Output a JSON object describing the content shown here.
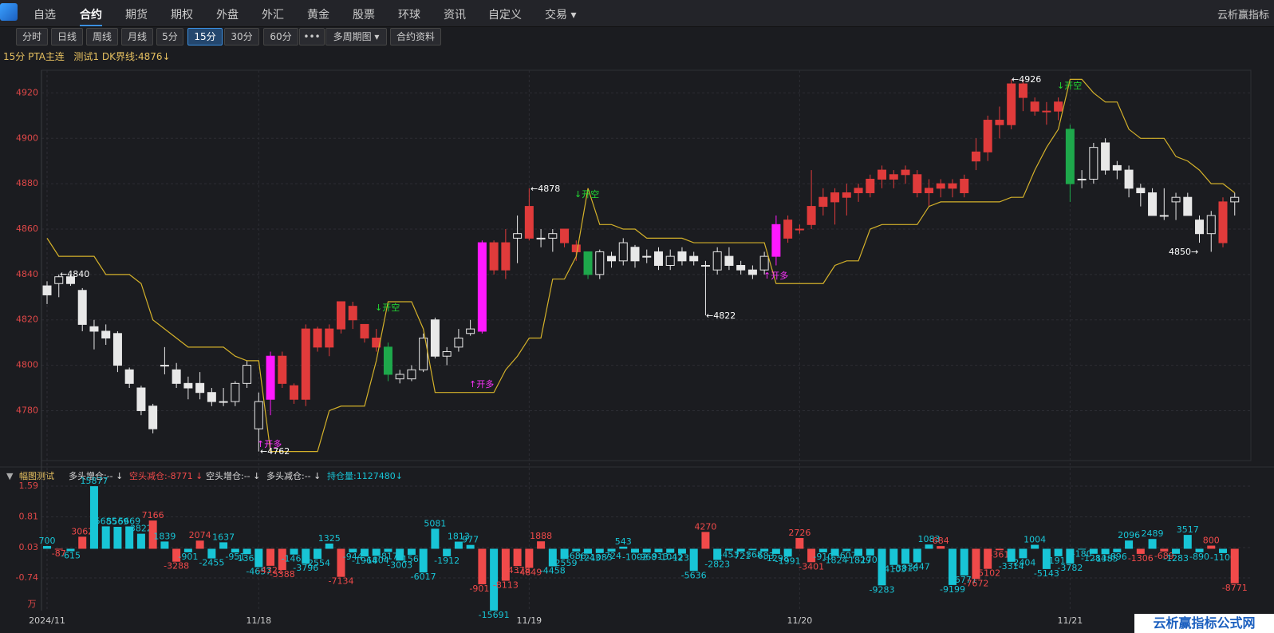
{
  "nav": {
    "items": [
      "自选",
      "合约",
      "期货",
      "期权",
      "外盘",
      "外汇",
      "黄金",
      "股票",
      "环球",
      "资讯",
      "自定义",
      "交易 ▾"
    ],
    "user": "云析赢指标"
  },
  "toolbar": {
    "buttons": [
      "分时",
      "日线",
      "周线",
      "月线",
      "5分",
      "15分",
      "30分",
      "60分",
      "•••",
      "多周期图 ▾",
      "合约资料"
    ]
  },
  "header": {
    "symbol": "15分 PTA主连",
    "indicator": "测试1 DK界线:4876↓"
  },
  "chart_data": [
    {
      "type": "candlestick",
      "categories": [
        "2024/11",
        null,
        null,
        null,
        null,
        null,
        null,
        null,
        null,
        null,
        null,
        null,
        null,
        null,
        null,
        null,
        null,
        null,
        "11/18",
        null,
        null,
        null,
        null,
        null,
        null,
        null,
        null,
        null,
        null,
        null,
        null,
        null,
        null,
        null,
        null,
        null,
        null,
        null,
        null,
        null,
        null,
        "11/19",
        null,
        null,
        null,
        null,
        null,
        null,
        null,
        null,
        null,
        null,
        null,
        null,
        null,
        null,
        null,
        null,
        null,
        null,
        null,
        null,
        null,
        null,
        "11/20",
        null,
        null,
        null,
        null,
        null,
        null,
        null,
        null,
        null,
        null,
        null,
        null,
        null,
        null,
        null,
        null,
        null,
        null,
        null,
        null,
        null,
        null,
        "11/21",
        null,
        null,
        null,
        null,
        null,
        null,
        null,
        null,
        null,
        null,
        null,
        null,
        null,
        null
      ],
      "open": [
        4835,
        4836,
        4839,
        4833,
        4817,
        4815,
        4814,
        4798,
        4790,
        4782,
        4800,
        4798,
        4792,
        4792,
        4788,
        4784,
        4784,
        4792,
        4772,
        4785,
        4792,
        4785,
        4785,
        4808,
        4808,
        4816,
        4820,
        4818,
        4812,
        4808,
        4794,
        4794,
        4798,
        4820,
        4804,
        4808,
        4814,
        4815,
        4842,
        4842,
        4856,
        4856,
        4856,
        4856,
        4860,
        4853,
        4850,
        4840,
        4848,
        4846,
        4852,
        4848,
        4850,
        4844,
        4850,
        4848,
        4844,
        4842,
        4848,
        4844,
        4842,
        4842,
        4848,
        4864,
        4860,
        4862,
        4870,
        4872,
        4876,
        4876,
        4876,
        4882,
        4882,
        4886,
        4884,
        4878,
        4878,
        4880,
        4876,
        4890,
        4894,
        4906,
        4906,
        4918,
        4916,
        4912,
        4912,
        4904,
        4882,
        4882,
        4898,
        4888,
        4886,
        4878,
        4876,
        4866,
        4872,
        4874,
        4864,
        4858,
        4854,
        4872
      ],
      "high": [
        4837,
        4840,
        4840,
        4834,
        4820,
        4818,
        4815,
        4799,
        4791,
        4783,
        4808,
        4801,
        4795,
        4797,
        4790,
        4790,
        4793,
        4802,
        4788,
        4806,
        4806,
        4792,
        4818,
        4817,
        4818,
        4828,
        4828,
        4818,
        4816,
        4810,
        4798,
        4800,
        4814,
        4821,
        4808,
        4816,
        4820,
        4855,
        4855,
        4860,
        4866,
        4878,
        4860,
        4860,
        4860,
        4855,
        4850,
        4851,
        4850,
        4856,
        4853,
        4851,
        4852,
        4851,
        4852,
        4850,
        4846,
        4852,
        4852,
        4846,
        4844,
        4850,
        4866,
        4866,
        4862,
        4886,
        4878,
        4878,
        4880,
        4880,
        4884,
        4888,
        4886,
        4888,
        4886,
        4882,
        4882,
        4882,
        4884,
        4900,
        4910,
        4914,
        4926,
        4926,
        4918,
        4916,
        4918,
        4906,
        4886,
        4898,
        4900,
        4890,
        4888,
        4880,
        4878,
        4878,
        4876,
        4876,
        4866,
        4868,
        4874,
        4876
      ],
      "low": [
        4827,
        4830,
        4835,
        4815,
        4807,
        4809,
        4797,
        4790,
        4778,
        4770,
        4796,
        4790,
        4785,
        4785,
        4782,
        4782,
        4782,
        4790,
        4762,
        4778,
        4790,
        4783,
        4782,
        4806,
        4804,
        4814,
        4816,
        4810,
        4806,
        4793,
        4792,
        4793,
        4797,
        4803,
        4800,
        4806,
        4813,
        4814,
        4840,
        4838,
        4845,
        4855,
        4852,
        4850,
        4852,
        4846,
        4838,
        4838,
        4843,
        4844,
        4843,
        4845,
        4842,
        4842,
        4844,
        4844,
        4822,
        4840,
        4842,
        4840,
        4838,
        4840,
        4844,
        4854,
        4858,
        4860,
        4866,
        4862,
        4866,
        4872,
        4874,
        4878,
        4878,
        4880,
        4874,
        4870,
        4874,
        4874,
        4874,
        4886,
        4890,
        4900,
        4904,
        4912,
        4910,
        4906,
        4908,
        4872,
        4878,
        4880,
        4884,
        4882,
        4874,
        4870,
        4866,
        4864,
        4864,
        4866,
        4854,
        4850,
        4852,
        4866
      ],
      "close": [
        4831,
        4839,
        4836,
        4818,
        4815,
        4812,
        4800,
        4792,
        4780,
        4772,
        4800,
        4792,
        4790,
        4788,
        4784,
        4784,
        4792,
        4800,
        4784,
        4804,
        4804,
        4791,
        4816,
        4816,
        4816,
        4828,
        4826,
        4812,
        4808,
        4796,
        4796,
        4798,
        4812,
        4804,
        4806,
        4812,
        4816,
        4854,
        4854,
        4854,
        4858,
        4870,
        4856,
        4858,
        4854,
        4850,
        4840,
        4850,
        4846,
        4854,
        4846,
        4848,
        4844,
        4848,
        4846,
        4846,
        4844,
        4850,
        4844,
        4842,
        4840,
        4848,
        4862,
        4856,
        4860,
        4870,
        4874,
        4876,
        4874,
        4878,
        4882,
        4886,
        4884,
        4884,
        4876,
        4876,
        4880,
        4878,
        4882,
        4894,
        4908,
        4908,
        4924,
        4924,
        4912,
        4912,
        4916,
        4880,
        4882,
        4896,
        4886,
        4886,
        4878,
        4876,
        4866,
        4866,
        4874,
        4866,
        4858,
        4866,
        4872,
        4874
      ],
      "colors": [
        "#e8e8e8",
        "#e8e8e8",
        "#e8e8e8",
        "#e8e8e8",
        "#e8e8e8",
        "#e8e8e8",
        "#e8e8e8",
        "#e8e8e8",
        "#e8e8e8",
        "#e8e8e8",
        "#e8e8e8",
        "#e8e8e8",
        "#e8e8e8",
        "#e8e8e8",
        "#e8e8e8",
        "#e8e8e8",
        "#e8e8e8",
        "#e8e8e8",
        "#e8e8e8",
        "#ff19ff",
        "#e03b3b",
        "#e03b3b",
        "#e03b3b",
        "#e03b3b",
        "#e03b3b",
        "#e03b3b",
        "#e03b3b",
        "#e03b3b",
        "#e03b3b",
        "#1ea84b",
        "#e8e8e8",
        "#e8e8e8",
        "#e8e8e8",
        "#e8e8e8",
        "#e8e8e8",
        "#e8e8e8",
        "#e8e8e8",
        "#ff19ff",
        "#e03b3b",
        "#e03b3b",
        "#e8e8e8",
        "#e03b3b",
        "#e8e8e8",
        "#e8e8e8",
        "#e03b3b",
        "#e03b3b",
        "#1ea84b",
        "#e8e8e8",
        "#e8e8e8",
        "#e8e8e8",
        "#e8e8e8",
        "#e8e8e8",
        "#e8e8e8",
        "#e8e8e8",
        "#e8e8e8",
        "#e8e8e8",
        "#e8e8e8",
        "#e8e8e8",
        "#e8e8e8",
        "#e8e8e8",
        "#e8e8e8",
        "#e8e8e8",
        "#ff19ff",
        "#e03b3b",
        "#e03b3b",
        "#e03b3b",
        "#e03b3b",
        "#e03b3b",
        "#e03b3b",
        "#e03b3b",
        "#e03b3b",
        "#e03b3b",
        "#e03b3b",
        "#e03b3b",
        "#e03b3b",
        "#e03b3b",
        "#e03b3b",
        "#e03b3b",
        "#e03b3b",
        "#e03b3b",
        "#e03b3b",
        "#e03b3b",
        "#e03b3b",
        "#e03b3b",
        "#e03b3b",
        "#e03b3b",
        "#e03b3b",
        "#1ea84b",
        "#e8e8e8",
        "#e8e8e8",
        "#e8e8e8",
        "#e8e8e8",
        "#e8e8e8",
        "#e8e8e8",
        "#e8e8e8",
        "#e8e8e8",
        "#e8e8e8",
        "#e8e8e8",
        "#e8e8e8",
        "#e8e8e8",
        "#e03b3b",
        "#e8e8e8"
      ],
      "line_values": [
        4856,
        4848,
        4848,
        4848,
        4848,
        4840,
        4840,
        4840,
        4836,
        4820,
        4816,
        4812,
        4808,
        4808,
        4808,
        4808,
        4804,
        4802,
        4802,
        4762,
        4762,
        4762,
        4762,
        4762,
        4780,
        4782,
        4782,
        4782,
        4802,
        4828,
        4828,
        4828,
        4816,
        4788,
        4788,
        4788,
        4788,
        4788,
        4788,
        4798,
        4804,
        4812,
        4812,
        4838,
        4838,
        4848,
        4878,
        4862,
        4862,
        4860,
        4860,
        4856,
        4856,
        4856,
        4856,
        4854,
        4854,
        4854,
        4854,
        4854,
        4854,
        4854,
        4836,
        4836,
        4836,
        4836,
        4836,
        4844,
        4846,
        4846,
        4860,
        4862,
        4862,
        4862,
        4862,
        4870,
        4872,
        4872,
        4872,
        4872,
        4872,
        4872,
        4874,
        4874,
        4886,
        4896,
        4904,
        4926,
        4926,
        4920,
        4916,
        4916,
        4904,
        4900,
        4900,
        4900,
        4892,
        4890,
        4886,
        4880,
        4880,
        4876
      ],
      "line_color": "#d4b12a",
      "annotations": [
        {
          "text": "←4840",
          "color": "#ffffff"
        },
        {
          "text": "←4762",
          "color": "#ffffff"
        },
        {
          "text": "←4878",
          "color": "#ffffff"
        },
        {
          "text": "←4822",
          "color": "#ffffff"
        },
        {
          "text": "←4926",
          "color": "#ffffff"
        },
        {
          "text": "4850→",
          "color": "#ffffff"
        },
        {
          "text": "↑开多",
          "color": "#ff33ff"
        },
        {
          "text": "↑开多",
          "color": "#ff33ff"
        },
        {
          "text": "↑开多",
          "color": "#ff33ff"
        },
        {
          "text": "↓开空",
          "color": "#22dd33"
        },
        {
          "text": "↓开空",
          "color": "#22dd33"
        },
        {
          "text": "↓开空",
          "color": "#22dd33"
        }
      ],
      "ylim": [
        4758,
        4930
      ],
      "yticks": [
        4780,
        4800,
        4820,
        4840,
        4860,
        4880,
        4900,
        4920
      ],
      "grid": true
    },
    {
      "type": "bar",
      "title": "幅图测试",
      "legend": [
        "多头增仓:-- ↓",
        "空头减仓:-8771 ↓",
        "空头增仓:-- ↓",
        "多头减仓:-- ↓",
        "持仓量:1127480↓"
      ],
      "unit": "万",
      "values": [
        0.07,
        -0.0087,
        -0.0615,
        0.3062,
        1.5877,
        0.5685,
        0.5569,
        0.5669,
        0.3822,
        0.7166,
        0.1839,
        -0.3288,
        -0.0901,
        0.2074,
        -0.2455,
        0.1637,
        -0.0951,
        -0.1364,
        -0.4657,
        -0.4322,
        -0.5388,
        -0.1462,
        -0.3796,
        -0.2554,
        0.1325,
        -0.7134,
        -0.0944,
        -0.1964,
        -0.1804,
        -0.0817,
        -0.3003,
        -0.1567,
        -0.6017,
        0.5081,
        -0.1912,
        0.1813,
        0.0977,
        -0.9011,
        -1.5691,
        -0.8113,
        -0.4378,
        -0.4849,
        0.1888,
        -0.4458,
        -0.2559,
        -0.0686,
        -0.1243,
        -0.1083,
        -0.0724,
        0.0543,
        -0.1002,
        -0.0968,
        -0.0913,
        -0.1042,
        -0.1233,
        -0.5636,
        0.427,
        -0.2823,
        -0.0453,
        -0.0721,
        -0.0368,
        -0.0683,
        -0.1298,
        -0.1991,
        0.2726,
        -0.3401,
        -0.091,
        -0.1824,
        -0.0607,
        -0.1829,
        -0.1709,
        -0.9283,
        -0.4103,
        -0.3816,
        -0.3447,
        0.1083,
        0.0684,
        -0.9199,
        -0.6771,
        -0.7672,
        -0.5102,
        -0.0361,
        -0.3314,
        -0.2404,
        0.1004,
        -0.5143,
        -0.1911,
        -0.3782,
        -0.018,
        -0.1284,
        -0.1385,
        -0.0896,
        0.2096,
        -0.1306,
        0.2489,
        -0.0689,
        -0.1283,
        0.3517,
        -0.089,
        0.08,
        -0.11,
        -0.8771
      ],
      "value_labels": [
        "700",
        "-87",
        "-615",
        "3062",
        "15877",
        "5685",
        "5569",
        "5669",
        "3822",
        "7166",
        "1839",
        "-3288",
        "-901",
        "2074",
        "-2455",
        "1637",
        "-951",
        "-1364",
        "-4657",
        "-4322",
        "-5388",
        "-1462",
        "-3796",
        "-2554",
        "1325",
        "-7134",
        "-944",
        "-1964",
        "-1804",
        "-817",
        "-3003",
        "-1567",
        "-6017",
        "5081",
        "-1912",
        "1813",
        "977",
        "-9011",
        "-15691",
        "-8113",
        "-4378",
        "-4849",
        "1888",
        "-4458",
        "-2559",
        "-686",
        "-1243",
        "-1083",
        "-724",
        "543",
        "-1002",
        "-968",
        "-913",
        "-1042",
        "-1233",
        "-5636",
        "4270",
        "-2823",
        "-453",
        "-721",
        "-368",
        "-683",
        "-1298",
        "-1991",
        "2726",
        "-3401",
        "-910",
        "-1824",
        "-607",
        "-1829",
        "-1709",
        "-9283",
        "-4103",
        "-3816",
        "-3447",
        "1083",
        "684",
        "-9199",
        "-6771",
        "-7672",
        "-5102",
        "-361",
        "-3314",
        "-2404",
        "1004",
        "-5143",
        "-1911",
        "-3782",
        "-180",
        "-1284",
        "-1385",
        "-896",
        "2096",
        "-1306",
        "2489",
        "-689",
        "-1283",
        "3517",
        "-890",
        "800",
        "-1100",
        "-8771"
      ],
      "colors": [
        "#18c5d6",
        "#f04a4a",
        "#18c5d6",
        "#f04a4a",
        "#18c5d6",
        "#18c5d6",
        "#18c5d6",
        "#18c5d6",
        "#18c5d6",
        "#f04a4a",
        "#18c5d6",
        "#f04a4a",
        "#18c5d6",
        "#f04a4a",
        "#18c5d6",
        "#18c5d6",
        "#18c5d6",
        "#18c5d6",
        "#18c5d6",
        "#f04a4a",
        "#f04a4a",
        "#18c5d6",
        "#18c5d6",
        "#18c5d6",
        "#18c5d6",
        "#f04a4a",
        "#18c5d6",
        "#18c5d6",
        "#18c5d6",
        "#18c5d6",
        "#18c5d6",
        "#18c5d6",
        "#18c5d6",
        "#18c5d6",
        "#18c5d6",
        "#18c5d6",
        "#18c5d6",
        "#f04a4a",
        "#18c5d6",
        "#f04a4a",
        "#f04a4a",
        "#f04a4a",
        "#f04a4a",
        "#18c5d6",
        "#18c5d6",
        "#18c5d6",
        "#18c5d6",
        "#18c5d6",
        "#18c5d6",
        "#18c5d6",
        "#18c5d6",
        "#18c5d6",
        "#18c5d6",
        "#18c5d6",
        "#18c5d6",
        "#18c5d6",
        "#f04a4a",
        "#18c5d6",
        "#18c5d6",
        "#18c5d6",
        "#18c5d6",
        "#18c5d6",
        "#18c5d6",
        "#18c5d6",
        "#f04a4a",
        "#f04a4a",
        "#18c5d6",
        "#18c5d6",
        "#18c5d6",
        "#18c5d6",
        "#18c5d6",
        "#18c5d6",
        "#18c5d6",
        "#18c5d6",
        "#18c5d6",
        "#18c5d6",
        "#f04a4a",
        "#18c5d6",
        "#18c5d6",
        "#f04a4a",
        "#f04a4a",
        "#f04a4a",
        "#18c5d6",
        "#18c5d6",
        "#18c5d6",
        "#18c5d6",
        "#18c5d6",
        "#18c5d6",
        "#18c5d6",
        "#18c5d6",
        "#18c5d6",
        "#18c5d6",
        "#18c5d6",
        "#f04a4a",
        "#18c5d6",
        "#f04a4a",
        "#18c5d6",
        "#18c5d6",
        "#18c5d6",
        "#f04a4a",
        "#18c5d6",
        "#f04a4a"
      ],
      "ylim": [
        -1.57,
        1.63
      ],
      "yticks": [
        1.59,
        0.81,
        0.03,
        -0.74
      ]
    }
  ],
  "watermark": "云析赢指标公式网"
}
